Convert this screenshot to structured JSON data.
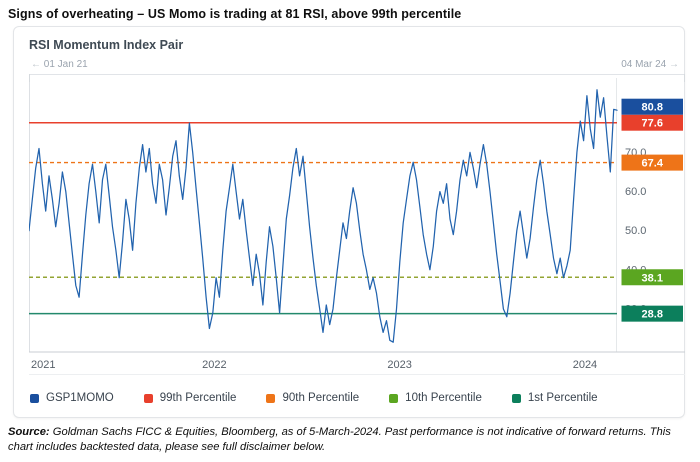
{
  "page": {
    "title": "Signs of overheating – US Momo is trading at 81 RSI, above 99th percentile"
  },
  "card": {
    "chart_title": "RSI Momentum Index Pair",
    "range": {
      "left_arrow": "←",
      "start_label": "01 Jan 21",
      "end_label": "04 Mar 24",
      "right_arrow": "→"
    }
  },
  "footer": {
    "source_label": "Source:",
    "source_text": " Goldman Sachs FICC & Equities, Bloomberg, as of 5-March-2024. Past performance is not indicative of forward returns. This chart includes backtested data, please see full disclaimer below."
  },
  "chart_data": {
    "type": "line",
    "title": "RSI Momentum Index Pair",
    "x_start": "01 Jan 21",
    "x_end": "04 Mar 24",
    "ylim": [
      19,
      88
    ],
    "grid": false,
    "legend_position": "bottom",
    "y_ticks": [
      {
        "label": "70.0",
        "value": 70
      },
      {
        "label": "60.0",
        "value": 60
      },
      {
        "label": "50.0",
        "value": 50
      },
      {
        "label": "40.0",
        "value": 40
      },
      {
        "label": "30.0",
        "value": 30
      }
    ],
    "x_ticks": [
      {
        "label": "2021",
        "pos": 0.0
      },
      {
        "label": "2022",
        "pos": 0.3152
      },
      {
        "label": "2023",
        "pos": 0.6304
      },
      {
        "label": "2024",
        "pos": 0.9455
      }
    ],
    "series": [
      {
        "name": "GSP1MOMO",
        "color": "#2263ae",
        "values": [
          50,
          58,
          66,
          71,
          62,
          55,
          64,
          58,
          51,
          57,
          65,
          60,
          52,
          44,
          36,
          33,
          44,
          54,
          62,
          67,
          60,
          52,
          63,
          67,
          59,
          51,
          45,
          38,
          47,
          58,
          53,
          45,
          57,
          66,
          72,
          65,
          71,
          62,
          57,
          67,
          63,
          54,
          61,
          69,
          73,
          64,
          58,
          66,
          77.5,
          70,
          61,
          52,
          43,
          33,
          25,
          29,
          38,
          33,
          45,
          55,
          61,
          67,
          60,
          53,
          58,
          50,
          43,
          36,
          44,
          39,
          31,
          42,
          51,
          46,
          38,
          29,
          41,
          53,
          59,
          66,
          71,
          64,
          69,
          60,
          51,
          43,
          36,
          30,
          24,
          31,
          26,
          30,
          38,
          45,
          52,
          48,
          55,
          61,
          57,
          50,
          44,
          40,
          35,
          38,
          34,
          28,
          24,
          27,
          22,
          21.5,
          30,
          42,
          52,
          58,
          64,
          67.5,
          63,
          56,
          49,
          44,
          40,
          46,
          55,
          60,
          57,
          62,
          53,
          49,
          55,
          63,
          68,
          64,
          70,
          66,
          61,
          67,
          72,
          67,
          60,
          52,
          44,
          37,
          30,
          28,
          34,
          42,
          50,
          55,
          49,
          43,
          48,
          56,
          63,
          68,
          62,
          55,
          49,
          43,
          39,
          43,
          38,
          41,
          45,
          58,
          70,
          78,
          73,
          84.5,
          76,
          71,
          86,
          79,
          84,
          74,
          65,
          81,
          80.8
        ]
      }
    ],
    "last_value": 80.8,
    "last_value_label": "80.8",
    "last_value_badge_color": "#1a4f9e",
    "reference_lines": [
      {
        "name": "99th Percentile",
        "value": 77.6,
        "value_label": "77.6",
        "style": "solid",
        "line_color": "#e8402c",
        "badge_color": "#e8402c"
      },
      {
        "name": "90th Percentile",
        "value": 67.4,
        "value_label": "67.4",
        "style": "dashed",
        "line_color": "#ee7418",
        "badge_color": "#ee7418"
      },
      {
        "name": "10th Percentile",
        "value": 38.1,
        "value_label": "38.1",
        "style": "dashed",
        "line_color": "#93a433",
        "badge_color": "#5ba621"
      },
      {
        "name": "1st Percentile",
        "value": 28.8,
        "value_label": "28.8",
        "style": "solid",
        "line_color": "#23896c",
        "badge_color": "#0c7f5c"
      }
    ],
    "legend": [
      {
        "label": "GSP1MOMO",
        "color": "#1a4f9e"
      },
      {
        "label": "99th Percentile",
        "color": "#e8402c"
      },
      {
        "label": "90th Percentile",
        "color": "#ee7418"
      },
      {
        "label": "10th Percentile",
        "color": "#5ba621"
      },
      {
        "label": "1st Percentile",
        "color": "#0c7f5c"
      }
    ]
  }
}
